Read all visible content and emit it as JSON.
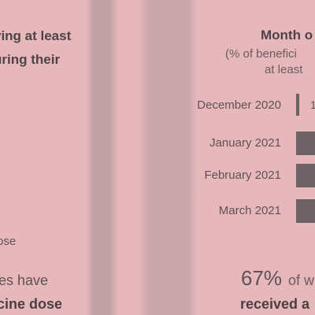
{
  "left_panel": {
    "title_line1": "ving at least",
    "title_line2": "uring their",
    "footnote": "ose",
    "stat_line1": "ries have",
    "stat_line2": "ccine dose"
  },
  "right_panel": {
    "title": "Month o",
    "subtitle_line1": "(% of benefici",
    "subtitle_line2": "at least",
    "stat_value": "67%",
    "stat_rest": "of w",
    "stat_line2": "received a"
  },
  "chart_data": {
    "type": "bar",
    "orientation": "horizontal",
    "categories": [
      "December 2020",
      "January 2021",
      "February 2021",
      "March 2021"
    ],
    "value_labels": [
      "1",
      "",
      "",
      ""
    ],
    "colors": {
      "bar": "#6e6165"
    }
  }
}
